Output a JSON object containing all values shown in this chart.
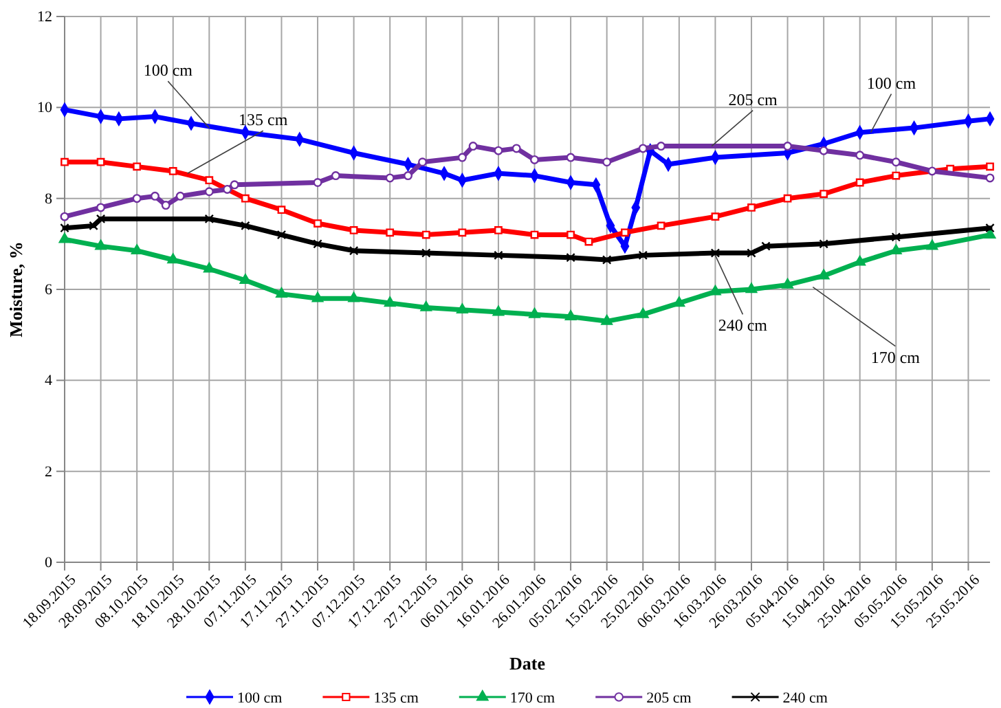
{
  "chart_data": {
    "type": "line",
    "xlabel": "Date",
    "ylabel": "Moisture, %",
    "xlim": [
      "2015-09-18",
      "2016-05-31"
    ],
    "xticks": [
      {
        "value": "2015-09-18",
        "label": "18.09.2015"
      },
      {
        "value": "2015-09-28",
        "label": "28.09.2015"
      },
      {
        "value": "2015-10-08",
        "label": "08.10.2015"
      },
      {
        "value": "2015-10-18",
        "label": "18.10.2015"
      },
      {
        "value": "2015-10-28",
        "label": "28.10.2015"
      },
      {
        "value": "2015-11-07",
        "label": "07.11.2015"
      },
      {
        "value": "2015-11-17",
        "label": "17.11.2015"
      },
      {
        "value": "2015-11-27",
        "label": "27.11.2015"
      },
      {
        "value": "2015-12-07",
        "label": "07.12.2015"
      },
      {
        "value": "2015-12-17",
        "label": "17.12.2015"
      },
      {
        "value": "2015-12-27",
        "label": "27.12.2015"
      },
      {
        "value": "2016-01-06",
        "label": "06.01.2016"
      },
      {
        "value": "2016-01-16",
        "label": "16.01.2016"
      },
      {
        "value": "2016-01-26",
        "label": "26.01.2016"
      },
      {
        "value": "2016-02-05",
        "label": "05.02.2016"
      },
      {
        "value": "2016-02-15",
        "label": "15.02.2016"
      },
      {
        "value": "2016-02-25",
        "label": "25.02.2016"
      },
      {
        "value": "2016-03-06",
        "label": "06.03.2016"
      },
      {
        "value": "2016-03-16",
        "label": "16.03.2016"
      },
      {
        "value": "2016-03-26",
        "label": "26.03.2016"
      },
      {
        "value": "2016-04-05",
        "label": "05.04.2016"
      },
      {
        "value": "2016-04-15",
        "label": "15.04.2016"
      },
      {
        "value": "2016-04-25",
        "label": "25.04.2016"
      },
      {
        "value": "2016-05-05",
        "label": "05.05.2016"
      },
      {
        "value": "2016-05-15",
        "label": "15.05.2016"
      },
      {
        "value": "2016-05-25",
        "label": "25.05.2016"
      }
    ],
    "ylim": [
      0,
      12
    ],
    "yticks": [
      0,
      2,
      4,
      6,
      8,
      10,
      12
    ],
    "grid": true,
    "legend": "bottom",
    "series": [
      {
        "name": "100 cm",
        "color": "#0000ff",
        "marker": "diamond",
        "x": [
          "2015-09-18",
          "2015-09-28",
          "2015-10-03",
          "2015-10-13",
          "2015-10-23",
          "2015-11-07",
          "2015-11-22",
          "2015-12-07",
          "2015-12-22",
          "2016-01-01",
          "2016-01-06",
          "2016-01-16",
          "2016-01-26",
          "2016-02-05",
          "2016-02-12",
          "2016-02-16",
          "2016-02-20",
          "2016-02-23",
          "2016-02-27",
          "2016-03-03",
          "2016-03-16",
          "2016-04-05",
          "2016-04-15",
          "2016-04-25",
          "2016-05-10",
          "2016-05-25",
          "2016-05-31"
        ],
        "values": [
          9.95,
          9.8,
          9.75,
          9.8,
          9.65,
          9.45,
          9.3,
          9.0,
          8.75,
          8.55,
          8.4,
          8.55,
          8.5,
          8.35,
          8.3,
          7.4,
          6.95,
          7.8,
          9.05,
          8.75,
          8.9,
          9.0,
          9.2,
          9.45,
          9.55,
          9.7,
          9.75
        ]
      },
      {
        "name": "135 cm",
        "color": "#ff0000",
        "marker": "square",
        "x": [
          "2015-09-18",
          "2015-09-28",
          "2015-10-08",
          "2015-10-18",
          "2015-10-28",
          "2015-11-07",
          "2015-11-17",
          "2015-11-27",
          "2015-12-07",
          "2015-12-17",
          "2015-12-27",
          "2016-01-06",
          "2016-01-16",
          "2016-01-26",
          "2016-02-05",
          "2016-02-10",
          "2016-02-20",
          "2016-03-01",
          "2016-03-16",
          "2016-03-26",
          "2016-04-05",
          "2016-04-15",
          "2016-04-25",
          "2016-05-05",
          "2016-05-20",
          "2016-05-31"
        ],
        "values": [
          8.8,
          8.8,
          8.7,
          8.6,
          8.4,
          8.0,
          7.75,
          7.45,
          7.3,
          7.25,
          7.2,
          7.25,
          7.3,
          7.2,
          7.2,
          7.05,
          7.25,
          7.4,
          7.6,
          7.8,
          8.0,
          8.1,
          8.35,
          8.5,
          8.65,
          8.7
        ]
      },
      {
        "name": "170 cm",
        "color": "#00b050",
        "marker": "triangle",
        "x": [
          "2015-09-18",
          "2015-09-28",
          "2015-10-08",
          "2015-10-18",
          "2015-10-28",
          "2015-11-07",
          "2015-11-17",
          "2015-11-27",
          "2015-12-07",
          "2015-12-17",
          "2015-12-27",
          "2016-01-06",
          "2016-01-16",
          "2016-01-26",
          "2016-02-05",
          "2016-02-15",
          "2016-02-25",
          "2016-03-06",
          "2016-03-16",
          "2016-03-26",
          "2016-04-05",
          "2016-04-15",
          "2016-04-25",
          "2016-05-05",
          "2016-05-15",
          "2016-05-31"
        ],
        "values": [
          7.1,
          6.95,
          6.85,
          6.65,
          6.45,
          6.2,
          5.9,
          5.8,
          5.8,
          5.7,
          5.6,
          5.55,
          5.5,
          5.45,
          5.4,
          5.3,
          5.45,
          5.7,
          5.95,
          6.0,
          6.1,
          6.3,
          6.6,
          6.85,
          6.95,
          7.2
        ]
      },
      {
        "name": "205 cm",
        "color": "#7030a0",
        "marker": "circle",
        "x": [
          "2015-09-18",
          "2015-09-28",
          "2015-10-08",
          "2015-10-13",
          "2015-10-16",
          "2015-10-20",
          "2015-10-28",
          "2015-11-02",
          "2015-11-04",
          "2015-11-27",
          "2015-12-02",
          "2015-12-17",
          "2015-12-22",
          "2015-12-26",
          "2016-01-06",
          "2016-01-09",
          "2016-01-16",
          "2016-01-21",
          "2016-01-26",
          "2016-02-05",
          "2016-02-15",
          "2016-02-25",
          "2016-03-01",
          "2016-04-05",
          "2016-04-15",
          "2016-04-25",
          "2016-05-05",
          "2016-05-15",
          "2016-05-31"
        ],
        "values": [
          7.6,
          7.8,
          8.0,
          8.05,
          7.85,
          8.05,
          8.15,
          8.2,
          8.3,
          8.35,
          8.5,
          8.45,
          8.5,
          8.8,
          8.9,
          9.15,
          9.05,
          9.1,
          8.85,
          8.9,
          8.8,
          9.1,
          9.15,
          9.15,
          9.05,
          8.95,
          8.8,
          8.6,
          8.45
        ]
      },
      {
        "name": "240 cm",
        "color": "#000000",
        "marker": "cross",
        "x": [
          "2015-09-18",
          "2015-09-26",
          "2015-09-28",
          "2015-10-28",
          "2015-11-07",
          "2015-11-17",
          "2015-11-27",
          "2015-12-07",
          "2015-12-27",
          "2016-01-16",
          "2016-02-05",
          "2016-02-15",
          "2016-02-25",
          "2016-03-16",
          "2016-03-26",
          "2016-03-30",
          "2016-04-15",
          "2016-05-05",
          "2016-05-31"
        ],
        "values": [
          7.35,
          7.4,
          7.55,
          7.55,
          7.4,
          7.2,
          7.0,
          6.85,
          6.8,
          6.75,
          6.7,
          6.65,
          6.75,
          6.8,
          6.8,
          6.95,
          7.0,
          7.15,
          7.35
        ]
      }
    ],
    "annotations": [
      {
        "text": "100 cm",
        "x": "2015-10-28",
        "y": 9.55
      },
      {
        "text": "135 cm",
        "x": "2015-10-22",
        "y": 8.55
      },
      {
        "text": "205 cm",
        "x": "2016-03-15",
        "y": 9.15
      },
      {
        "text": "100 cm",
        "x": "2016-04-28",
        "y": 9.45
      },
      {
        "text": "240 cm",
        "x": "2016-03-16",
        "y": 6.75
      },
      {
        "text": "170 cm",
        "x": "2016-04-12",
        "y": 6.05
      }
    ]
  }
}
